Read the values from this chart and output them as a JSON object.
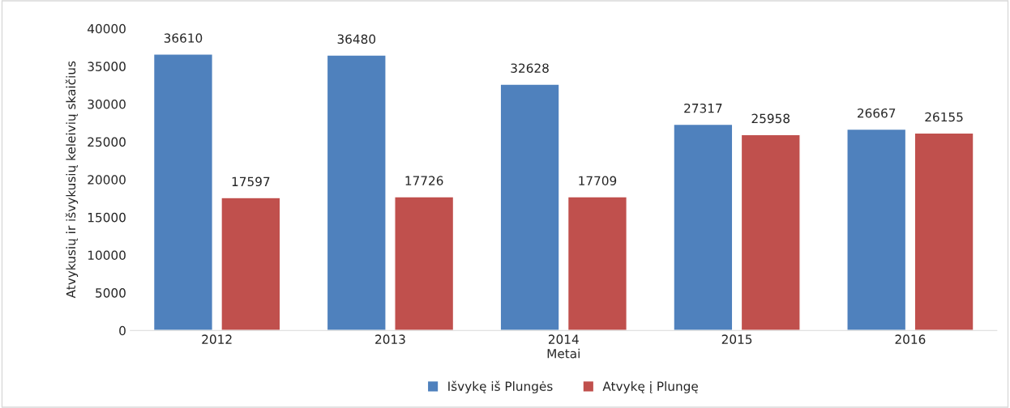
{
  "chart_data": {
    "type": "bar",
    "xlabel": "Metai",
    "ylabel": "Atvykusių ir išvykusių keleivių skaičius",
    "categories": [
      "2012",
      "2013",
      "2014",
      "2015",
      "2016"
    ],
    "series": [
      {
        "name": "Išvykę iš Plungės",
        "color": "#4f81bd",
        "values": [
          36610,
          36480,
          32628,
          27317,
          26667
        ]
      },
      {
        "name": "Atvykę į Plungę",
        "color": "#c0504d",
        "values": [
          17597,
          17726,
          17709,
          25958,
          26155
        ]
      }
    ],
    "ylim": [
      0,
      40000
    ],
    "yticks": [
      0,
      5000,
      10000,
      15000,
      20000,
      25000,
      30000,
      35000,
      40000
    ],
    "data_labels": true,
    "grid": false,
    "legend": "bottom"
  }
}
